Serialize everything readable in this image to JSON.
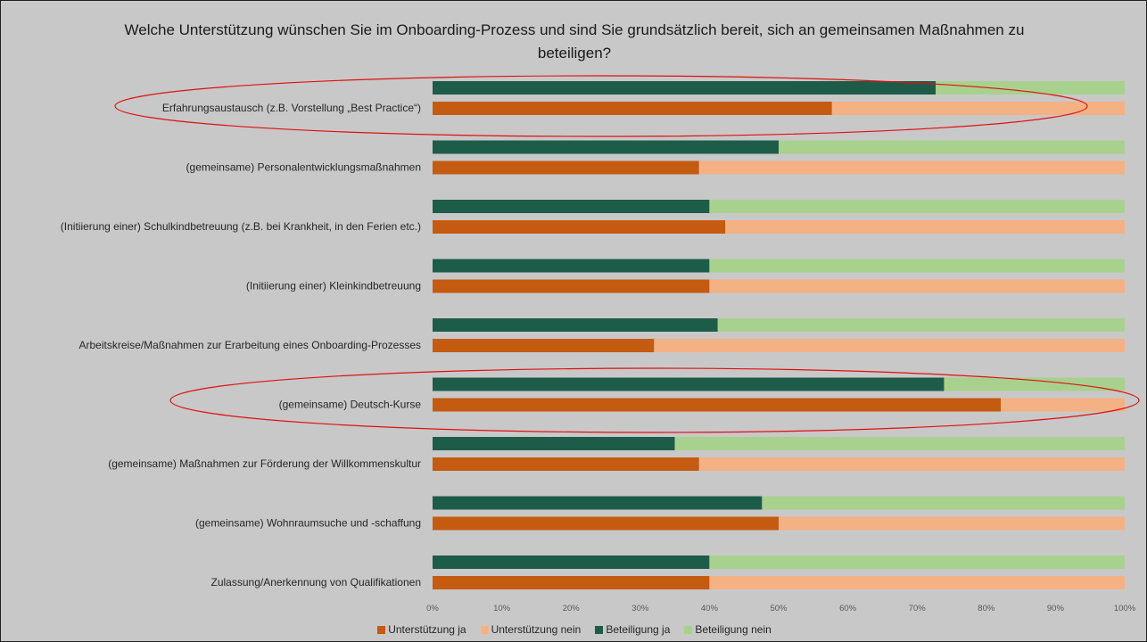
{
  "chart_data": {
    "type": "bar",
    "orientation": "horizontal",
    "stacked": "percent",
    "title": "Welche Unterstützung wünschen Sie im Onboarding-Prozess und sind Sie grundsätzlich bereit, sich an gemeinsamen Maßnahmen zu beteiligen?",
    "categories": [
      "Erfahrungsaustausch (z.B. Vorstellung „Best Practice“)",
      "(gemeinsame) Personalentwicklungsmaßnahmen",
      "(Initiierung einer) Schulkindbetreuung (z.B. bei Krankheit, in den Ferien etc.)",
      "(Initiierung einer) Kleinkindbetreuung",
      "Arbeitskreise/Maßnahmen zur Erarbeitung eines Onboarding-Prozesses",
      "(gemeinsame) Deutsch-Kurse",
      "(gemeinsame) Maßnahmen zur Förderung der Willkommenskultur",
      "(gemeinsame) Wohnraumsuche und -schaffung",
      "Zulassung/Anerkennung von Qualifikationen"
    ],
    "groups": [
      {
        "series": [
          {
            "name": "Unterstützung ja",
            "color": "#c55a11",
            "values": [
              57.7,
              38.5,
              42.3,
              40,
              32,
              82.1,
              38.5,
              50,
              40
            ]
          },
          {
            "name": "Unterstützung nein",
            "color": "#f4b183",
            "values": [
              42.3,
              61.5,
              57.7,
              60,
              68,
              17.9,
              61.5,
              50,
              60
            ]
          }
        ]
      },
      {
        "series": [
          {
            "name": "Beteiligung ja",
            "color": "#1e5c4a",
            "values": [
              72.7,
              50,
              40,
              40,
              41.2,
              73.9,
              35,
              47.6,
              40
            ]
          },
          {
            "name": "Beteiligung nein",
            "color": "#a9d18e",
            "values": [
              27.3,
              50,
              60,
              60,
              58.8,
              26.1,
              65,
              52.4,
              60
            ]
          }
        ]
      }
    ],
    "xlim": [
      0,
      100
    ],
    "x_ticks": [
      "0%",
      "10%",
      "20%",
      "30%",
      "40%",
      "50%",
      "60%",
      "70%",
      "80%",
      "90%",
      "100%"
    ],
    "legend": {
      "position": "bottom",
      "entries": [
        {
          "label": "Unterstützung ja",
          "color": "#c55a11"
        },
        {
          "label": "Unterstützung nein",
          "color": "#f4b183"
        },
        {
          "label": "Beteiligung ja",
          "color": "#1e5c4a"
        },
        {
          "label": "Beteiligung nein",
          "color": "#a9d18e"
        }
      ]
    },
    "highlighted_categories": [
      0,
      5
    ],
    "highlight_color": "#e01010"
  }
}
